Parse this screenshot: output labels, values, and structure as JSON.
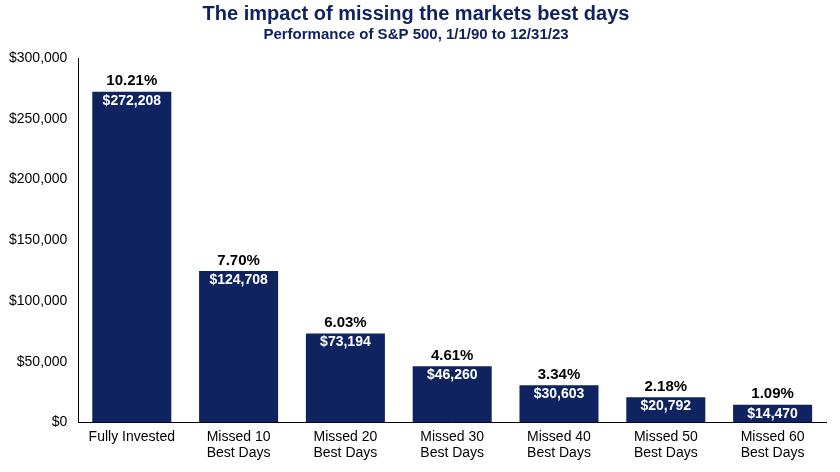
{
  "chart_data": {
    "type": "bar",
    "title": "The impact of missing the markets best days",
    "subtitle": "Performance of S&P 500, 1/1/90 to 12/31/23",
    "categories": [
      "Fully Invested",
      "Missed 10 Best Days",
      "Missed 20 Best Days",
      "Missed 30 Best Days",
      "Missed 40 Best Days",
      "Missed 50 Best Days",
      "Missed 60 Best Days"
    ],
    "values": [
      272208,
      124708,
      73194,
      46260,
      30603,
      20792,
      14470
    ],
    "value_labels": [
      "$272,208",
      "$124,708",
      "$73,194",
      "$46,260",
      "$30,603",
      "$20,792",
      "$14,470"
    ],
    "returns": [
      10.21,
      7.7,
      6.03,
      4.61,
      3.34,
      2.18,
      1.09
    ],
    "return_labels": [
      "10.21%",
      "7.70%",
      "6.03%",
      "4.61%",
      "3.34%",
      "2.18%",
      "1.09%"
    ],
    "color": "#0f2361",
    "ylim": [
      0,
      300000
    ],
    "yticks": [
      {
        "value": 0,
        "label": "$0"
      },
      {
        "value": 50000,
        "label": "$50,000"
      },
      {
        "value": 100000,
        "label": "$100,000"
      },
      {
        "value": 150000,
        "label": "$150,000"
      },
      {
        "value": 200000,
        "label": "$200,000"
      },
      {
        "value": 250000,
        "label": "$250,000"
      },
      {
        "value": 300000,
        "label": "$300,000"
      }
    ],
    "grid": false,
    "data_labels": true
  }
}
